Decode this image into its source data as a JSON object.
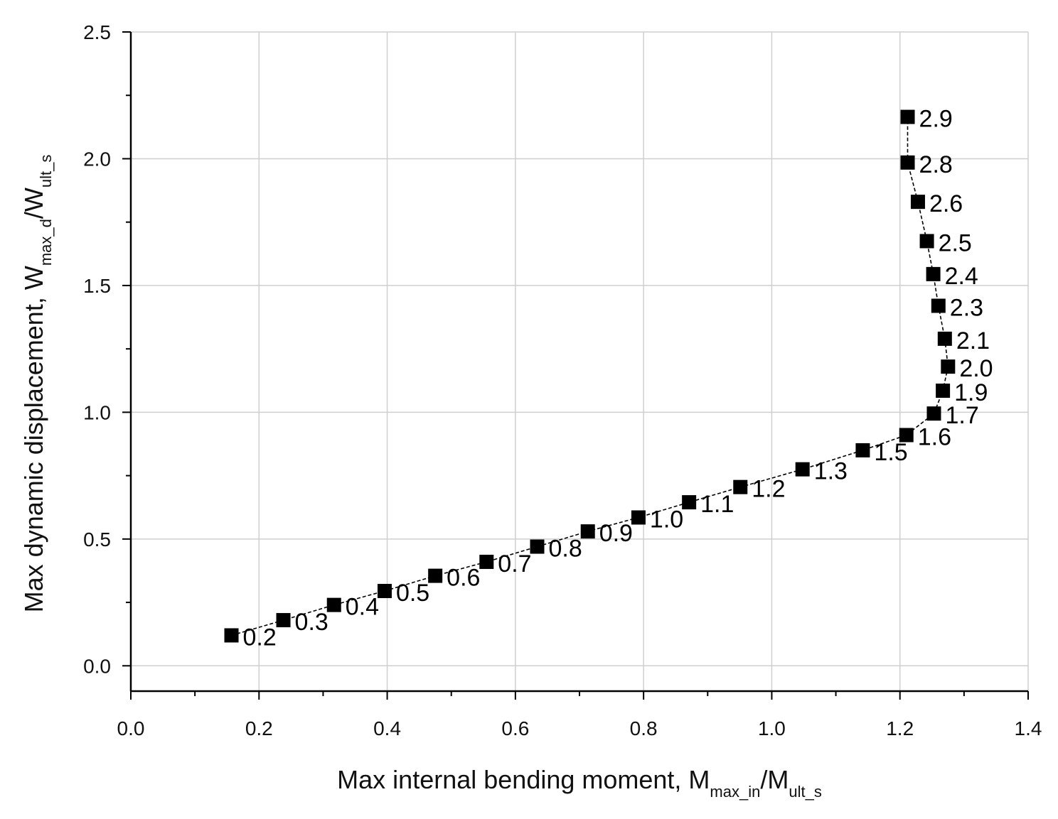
{
  "chart_data": {
    "type": "scatter",
    "xlabel": "Max internal bending moment, M",
    "xlabel_sub1": "max_in",
    "xlabel_mid": "/M",
    "xlabel_sub2": "ult_s",
    "ylabel": "Max dynamic displacement, W",
    "ylabel_sub1": "max_d",
    "ylabel_mid": "/W",
    "ylabel_sub2": "ult_s",
    "xlim": [
      0.0,
      1.4
    ],
    "ylim": [
      -0.1,
      2.5
    ],
    "xticks": [
      "0.0",
      "0.2",
      "0.4",
      "0.6",
      "0.8",
      "1.0",
      "1.2",
      "1.4"
    ],
    "yticks": [
      "0.0",
      "0.5",
      "1.0",
      "1.5",
      "2.0",
      "2.5"
    ],
    "grid": true,
    "marker": "square",
    "line": "dashed",
    "series": [
      {
        "points": [
          {
            "x": 0.157,
            "y": 0.12,
            "label": "0.2"
          },
          {
            "x": 0.238,
            "y": 0.18,
            "label": "0.3"
          },
          {
            "x": 0.317,
            "y": 0.24,
            "label": "0.4"
          },
          {
            "x": 0.396,
            "y": 0.295,
            "label": "0.5"
          },
          {
            "x": 0.475,
            "y": 0.355,
            "label": "0.6"
          },
          {
            "x": 0.555,
            "y": 0.41,
            "label": "0.7"
          },
          {
            "x": 0.634,
            "y": 0.47,
            "label": "0.8"
          },
          {
            "x": 0.713,
            "y": 0.53,
            "label": "0.9"
          },
          {
            "x": 0.792,
            "y": 0.585,
            "label": "1.0"
          },
          {
            "x": 0.871,
            "y": 0.645,
            "label": "1.1"
          },
          {
            "x": 0.951,
            "y": 0.705,
            "label": "1.2"
          },
          {
            "x": 1.048,
            "y": 0.775,
            "label": "1.3"
          },
          {
            "x": 1.142,
            "y": 0.85,
            "label": "1.5"
          },
          {
            "x": 1.21,
            "y": 0.91,
            "label": "1.6"
          },
          {
            "x": 1.253,
            "y": 0.995,
            "label": "1.7"
          },
          {
            "x": 1.267,
            "y": 1.085,
            "label": "1.9"
          },
          {
            "x": 1.275,
            "y": 1.18,
            "label": "2.0"
          },
          {
            "x": 1.27,
            "y": 1.29,
            "label": "2.1"
          },
          {
            "x": 1.26,
            "y": 1.42,
            "label": "2.3"
          },
          {
            "x": 1.252,
            "y": 1.545,
            "label": "2.4"
          },
          {
            "x": 1.242,
            "y": 1.675,
            "label": "2.5"
          },
          {
            "x": 1.228,
            "y": 1.83,
            "label": "2.6"
          },
          {
            "x": 1.212,
            "y": 1.985,
            "label": "2.8"
          },
          {
            "x": 1.212,
            "y": 2.165,
            "label": "2.9"
          }
        ]
      }
    ]
  }
}
